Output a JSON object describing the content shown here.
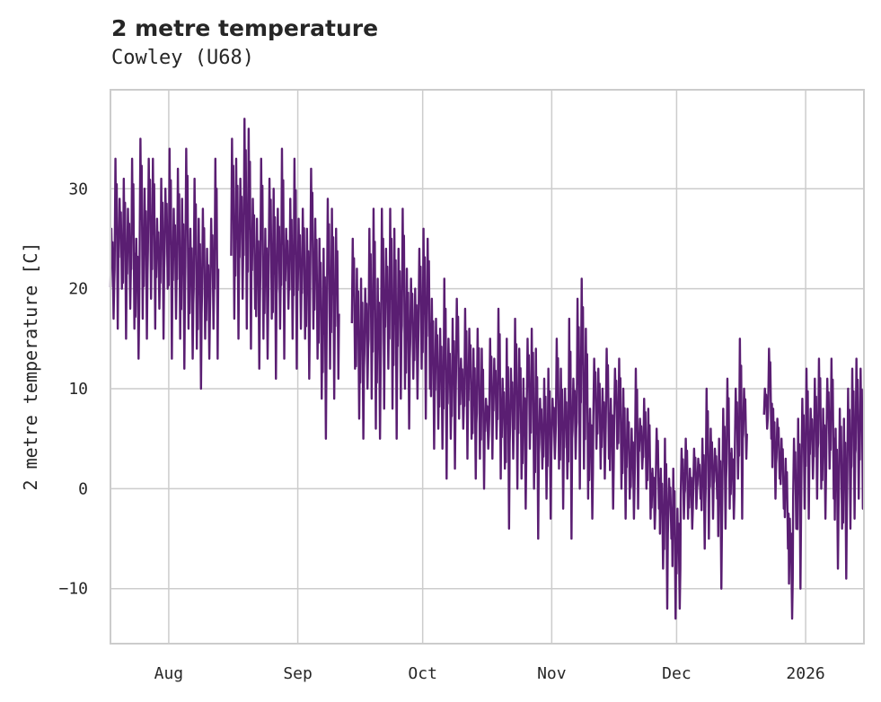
{
  "chart_data": {
    "type": "line",
    "title": "2 metre temperature",
    "subtitle": "Cowley (U68)",
    "xlabel": "",
    "ylabel": "2 metre temperature [C]",
    "xlim": [
      "2025-07-18",
      "2026-01-15"
    ],
    "ylim": [
      -15.5,
      39.9
    ],
    "grid": true,
    "color": "#5a1e72",
    "y_ticks": [
      {
        "value": -10,
        "label": "−10"
      },
      {
        "value": 0,
        "label": "0"
      },
      {
        "value": 10,
        "label": "10"
      },
      {
        "value": 20,
        "label": "20"
      },
      {
        "value": 30,
        "label": "30"
      }
    ],
    "x_ticks": [
      {
        "date": "2025-08-01",
        "label": "Aug"
      },
      {
        "date": "2025-09-01",
        "label": "Sep"
      },
      {
        "date": "2025-10-01",
        "label": "Oct"
      },
      {
        "date": "2025-11-01",
        "label": "Nov"
      },
      {
        "date": "2025-12-01",
        "label": "Dec"
      },
      {
        "date": "2026-01-01",
        "label": "2026"
      }
    ],
    "series": [
      {
        "name": "2 metre temperature",
        "start_date": "2025-07-18",
        "interval": "daily",
        "daily_max": [
          26,
          33,
          29,
          31,
          28,
          33,
          25,
          35,
          30,
          33,
          33,
          27,
          31,
          30,
          34,
          28,
          32,
          29,
          34,
          26,
          31,
          27,
          28,
          24,
          27,
          33,
          null,
          null,
          null,
          35,
          33,
          31,
          37,
          36,
          29,
          27,
          33,
          26,
          31,
          30,
          28,
          34,
          26,
          29,
          33,
          27,
          28,
          26,
          32,
          27,
          25,
          24,
          29,
          28,
          26,
          null,
          null,
          null,
          25,
          22,
          21,
          20,
          26,
          28,
          21,
          28,
          24,
          28,
          26,
          24,
          28,
          22,
          21,
          20,
          24,
          26,
          25,
          19,
          17,
          16,
          21,
          15,
          17,
          19,
          13,
          18,
          16,
          14,
          16,
          14,
          9,
          15,
          13,
          18,
          11,
          15,
          12,
          17,
          14,
          11,
          15,
          16,
          14,
          9,
          11,
          12,
          9,
          15,
          12,
          10,
          17,
          11,
          19,
          21,
          16,
          8,
          13,
          12,
          10,
          14,
          9,
          12,
          13,
          10,
          8,
          6,
          12,
          7,
          9,
          8,
          2,
          6,
          2,
          5,
          1,
          2,
          -2,
          4,
          5,
          2,
          4,
          3,
          5,
          10,
          6,
          4,
          5,
          8,
          11,
          4,
          10,
          15,
          10,
          null,
          null,
          null,
          null,
          10,
          14,
          8,
          7,
          5,
          3,
          -3,
          5,
          7,
          9,
          12,
          8,
          11,
          13,
          8,
          11,
          13,
          6,
          8,
          7,
          10,
          12,
          13,
          12
        ],
        "daily_min": [
          17,
          16,
          20,
          15,
          18,
          16,
          13,
          17,
          15,
          19,
          16,
          18,
          15,
          20,
          13,
          17,
          15,
          12,
          16,
          13,
          14,
          10,
          15,
          13,
          16,
          13,
          null,
          null,
          null,
          17,
          15,
          19,
          16,
          14,
          18,
          12,
          15,
          13,
          17,
          11,
          16,
          13,
          18,
          15,
          12,
          16,
          15,
          11,
          16,
          13,
          9,
          5,
          12,
          9,
          11,
          null,
          null,
          null,
          12,
          7,
          5,
          10,
          9,
          6,
          5,
          8,
          12,
          8,
          5,
          9,
          10,
          6,
          11,
          9,
          12,
          7,
          10,
          4,
          6,
          4,
          1,
          5,
          2,
          7,
          6,
          3,
          5,
          1,
          3,
          0,
          4,
          3,
          5,
          1,
          2,
          -4,
          3,
          0,
          1,
          -2,
          4,
          0,
          -5,
          2,
          -1,
          -3,
          3,
          2,
          -2,
          1,
          -5,
          3,
          0,
          2,
          -1,
          -3,
          4,
          2,
          1,
          3,
          -2,
          4,
          0,
          -3,
          -1,
          -3,
          -2,
          2,
          0,
          -3,
          -4,
          -2,
          -8,
          -12,
          -5,
          -13,
          -12,
          -3,
          -3,
          -4,
          -2,
          -1,
          -6,
          -5,
          -3,
          -1,
          -10,
          -4,
          -2,
          -3,
          1,
          -3,
          3,
          null,
          null,
          null,
          null,
          6,
          5,
          -1,
          1,
          -2,
          -6,
          -13,
          -4,
          -10,
          -2,
          -3,
          1,
          -1,
          0,
          -3,
          2,
          -1,
          -8,
          -4,
          -9,
          -4,
          -3,
          -1,
          -2
        ]
      }
    ]
  }
}
